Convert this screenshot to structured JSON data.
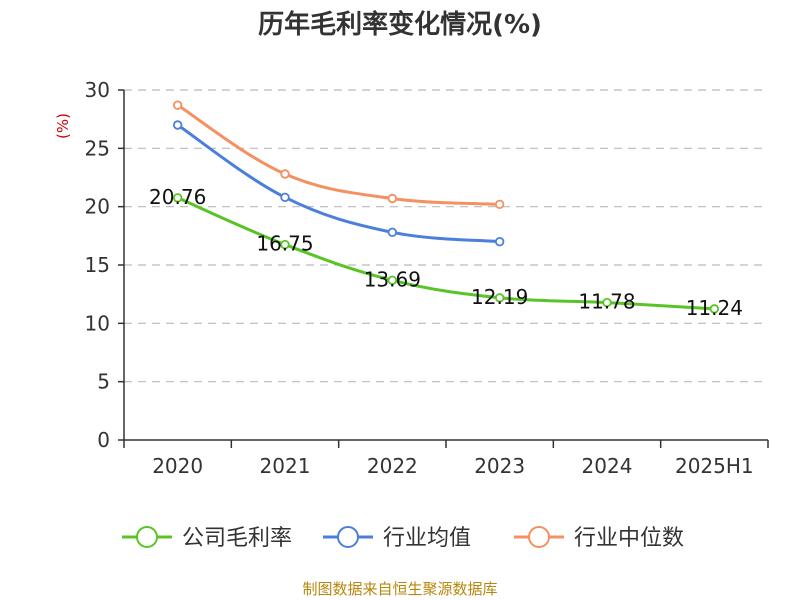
{
  "chart_data": {
    "type": "line",
    "title": "历年毛利率变化情况(%)",
    "ylabel": "(%)",
    "categories": [
      "2020",
      "2021",
      "2022",
      "2023",
      "2024",
      "2025H1"
    ],
    "ylim": [
      0,
      30
    ],
    "yticks": [
      0,
      5,
      10,
      15,
      20,
      25,
      30
    ],
    "grid": true,
    "legend_position": "bottom",
    "series": [
      {
        "name": "公司毛利率",
        "color": "#5ac426",
        "values": [
          20.76,
          16.75,
          13.69,
          12.19,
          11.78,
          11.24
        ],
        "labels": [
          "20.76",
          "16.75",
          "13.69",
          "12.19",
          "11.78",
          "11.24"
        ]
      },
      {
        "name": "行业均值",
        "color": "#4b7fdb",
        "values": [
          27.0,
          20.8,
          17.8,
          17.0,
          null,
          null
        ]
      },
      {
        "name": "行业中位数",
        "color": "#f59060",
        "values": [
          28.7,
          22.8,
          20.7,
          20.2,
          null,
          null
        ]
      }
    ]
  },
  "source": "制图数据来自恒生聚源数据库"
}
